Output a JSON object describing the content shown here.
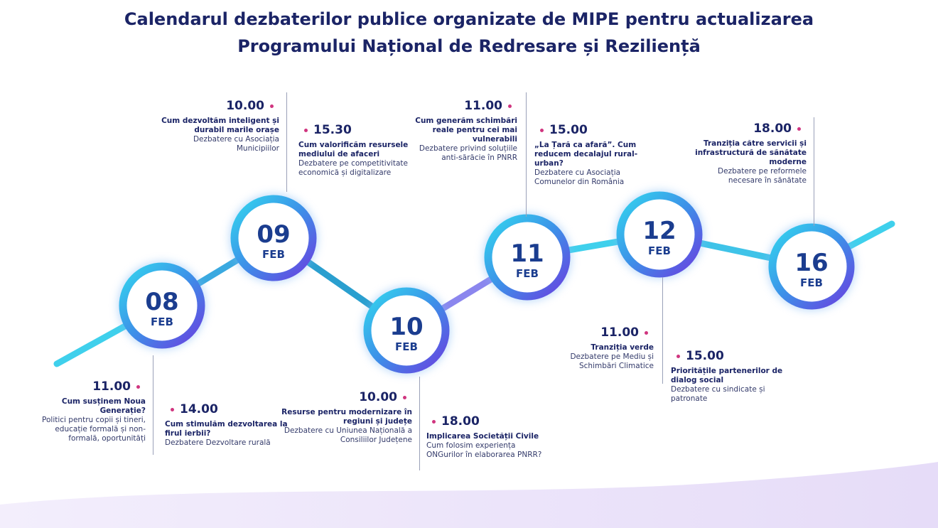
{
  "header": {
    "title": [
      "Calendarul dezbaterilor publice organizate de MIPE pentru actualizarea",
      "Programului Național de Redresare și Reziliență"
    ]
  },
  "days": [
    {
      "day": "08",
      "month": "FEB",
      "events": [
        {
          "time": "11.00",
          "title": "Cum susținem Noua Generație?",
          "description": "Politici pentru copii și tineri, educație formală și non-formală, oportunități"
        },
        {
          "time": "14.00",
          "title": "Cum stimulăm dezvoltarea la firul ierbii?",
          "description": "Dezbatere Dezvoltare rurală"
        }
      ]
    },
    {
      "day": "09",
      "month": "FEB",
      "events": [
        {
          "time": "10.00",
          "title": "Cum dezvoltăm inteligent și durabil marile orașe",
          "description": "Dezbatere cu Asociația Municipiilor"
        },
        {
          "time": "15.30",
          "title": "Cum valorificăm resursele mediului de afaceri",
          "description": "Dezbatere pe competitivitate economică și digitalizare"
        }
      ]
    },
    {
      "day": "10",
      "month": "FEB",
      "events": [
        {
          "time": "10.00",
          "title": "Resurse pentru modernizare în regiuni și județe",
          "description": "Dezbatere cu Uniunea Națională a Consiliilor Județene"
        },
        {
          "time": "18.00",
          "title": "Implicarea Societății Civile",
          "description": "Cum folosim experiența ONGurilor în elaborarea PNRR?"
        }
      ]
    },
    {
      "day": "11",
      "month": "FEB",
      "events": [
        {
          "time": "11.00",
          "title": "Cum generăm schimbări reale pentru cei mai vulnerabili",
          "description": "Dezbatere privind soluțiile anti-sărăcie în PNRR"
        },
        {
          "time": "15.00",
          "title": "„La Țară ca afară”. Cum reducem decalajul rural-urban?",
          "description": "Dezbatere cu Asociația Comunelor din România"
        }
      ]
    },
    {
      "day": "12",
      "month": "FEB",
      "events": [
        {
          "time": "11.00",
          "title": "Tranziția verde",
          "description": "Dezbatere pe Mediu și Schimbări Climatice"
        },
        {
          "time": "15.00",
          "title": "Prioritățile partenerilor de dialog social",
          "description": "Dezbatere cu sindicate și patronate"
        }
      ]
    },
    {
      "day": "16",
      "month": "FEB",
      "events": [
        {
          "time": "18.00",
          "title": "Tranziția către servicii și infrastructură de sănătate moderne",
          "description": "Dezbatere pe reformele necesare în sănătate"
        }
      ]
    }
  ]
}
